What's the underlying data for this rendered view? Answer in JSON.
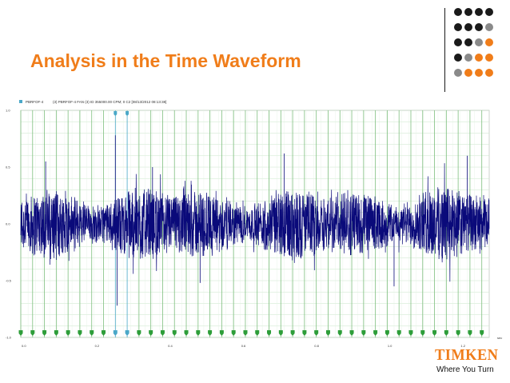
{
  "slide": {
    "title": "Analysis in the Time Waveform",
    "logo_text": "TIMKEN",
    "logo_tagline": "Where You Turn"
  },
  "colors": {
    "title": "#f07d1a",
    "waveform": "#0a0a7a",
    "grid_vertical": "#7fbf7f",
    "grid_horizontal": "#c8e6c8",
    "marker": "#2e9e3a",
    "marker_highlight": "#4aa8c8",
    "dot_dark": "#1a1a1a",
    "dot_gray": "#8a8a8a",
    "dot_orange": "#f07d1a"
  },
  "decoration": {
    "dot_grid_rows": [
      [
        "dark",
        "dark",
        "dark",
        "dark"
      ],
      [
        "dark",
        "dark",
        "dark",
        "gray"
      ],
      [
        "dark",
        "dark",
        "gray",
        "orange"
      ],
      [
        "dark",
        "gray",
        "orange",
        "orange"
      ],
      [
        "gray",
        "orange",
        "orange",
        "orange"
      ]
    ]
  },
  "chart_data": {
    "type": "line",
    "header": {
      "channel": "PBRFOF-4",
      "info": "(3) PBRFOF-4 FAN (3) ID 355000.00 CPM; 0 C2 [08/13/2012 08:13:38]"
    },
    "y_ticks": [
      "1.0",
      "0.5",
      "0.0",
      "-0.5",
      "-1.0"
    ],
    "x_ticks": [
      "0.0",
      "0.2",
      "0.4",
      "0.6",
      "0.8",
      "1.0",
      "1.2"
    ],
    "x_unit": "sec",
    "xlim": [
      0,
      1.28
    ],
    "ylim": [
      -1.0,
      1.0
    ],
    "envelope_amplitude": 0.28,
    "marker_x": [
      0.0,
      0.0323,
      0.0646,
      0.0969,
      0.1292,
      0.1615,
      0.1938,
      0.2261,
      0.2584,
      0.2907,
      0.323,
      0.3553,
      0.3876,
      0.4199,
      0.4522,
      0.4845,
      0.5168,
      0.5491,
      0.5814,
      0.6137,
      0.646,
      0.6783,
      0.7106,
      0.7429,
      0.7752,
      0.8075,
      0.8398,
      0.8721,
      0.9044,
      0.9367,
      0.969,
      1.0013,
      1.0336,
      1.0659,
      1.0982,
      1.1305,
      1.1628,
      1.1951,
      1.2274,
      1.2597
    ],
    "highlighted_markers": [
      0.2907,
      0.2584
    ],
    "impact_peaks": [
      {
        "x": 0.068,
        "y": 0.55
      },
      {
        "x": 0.2584,
        "y": 0.78
      },
      {
        "x": 0.263,
        "y": -0.72
      },
      {
        "x": 0.36,
        "y": 0.5
      },
      {
        "x": 0.49,
        "y": -0.52
      },
      {
        "x": 0.72,
        "y": 0.62
      },
      {
        "x": 1.02,
        "y": -0.55
      },
      {
        "x": 1.22,
        "y": 0.6
      }
    ]
  }
}
